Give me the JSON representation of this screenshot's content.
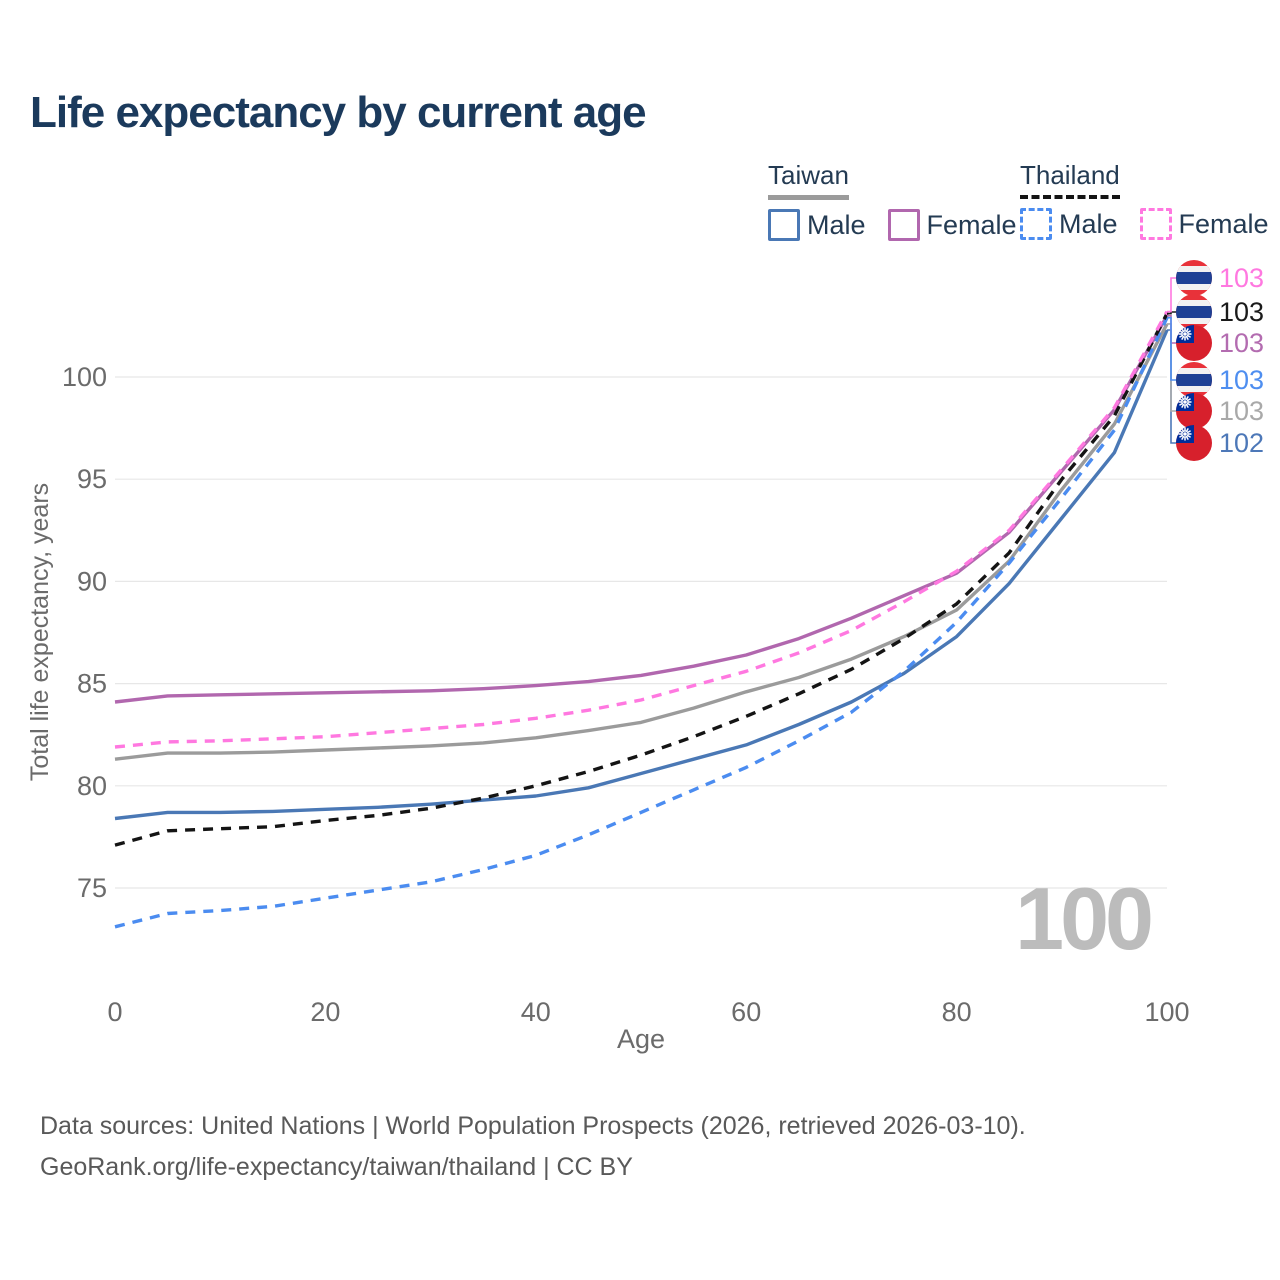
{
  "title": "Life expectancy by current age",
  "watermark": "100",
  "colors": {
    "taiwan_male": "#4a78b5",
    "taiwan_female": "#b167ae",
    "taiwan_all": "#9b9b9b",
    "thailand_male": "#4b8cf0",
    "thailand_female": "#ff78e0",
    "thailand_all": "#141414",
    "grid": "#e7e7e7",
    "tick_text": "#6b6b6b",
    "title_text": "#1b3a5c",
    "legend_text": "#243b53",
    "watermark_text": "#bcbcbc",
    "source_text": "#595959"
  },
  "legend": {
    "groups": [
      {
        "label": "Taiwan",
        "underline_style": "solid",
        "underline_color": "#9b9b9b",
        "items": [
          {
            "label": "Male",
            "color": "#4a78b5",
            "dashed": false
          },
          {
            "label": "Female",
            "color": "#b167ae",
            "dashed": false
          }
        ]
      },
      {
        "label": "Thailand",
        "underline_style": "dashed",
        "underline_color": "#141414",
        "items": [
          {
            "label": "Male",
            "color": "#4b8cf0",
            "dashed": true
          },
          {
            "label": "Female",
            "color": "#ff78e0",
            "dashed": true
          }
        ]
      }
    ]
  },
  "axes": {
    "x_label": "Age",
    "y_label": "Total life expectancy, years",
    "x_ticks": [
      0,
      20,
      40,
      60,
      80,
      100
    ],
    "y_ticks": [
      75,
      80,
      85,
      90,
      95,
      100
    ],
    "x_range": [
      0,
      100
    ],
    "y_range": [
      72.5,
      104
    ]
  },
  "end_labels": [
    {
      "flag": "thailand",
      "value": "103",
      "color": "#ff78e0",
      "series": "Thailand Female"
    },
    {
      "flag": "thailand",
      "value": "103",
      "color": "#1a1a1a",
      "series": "Thailand"
    },
    {
      "flag": "taiwan",
      "value": "103",
      "color": "#b36cb0",
      "series": "Taiwan Female"
    },
    {
      "flag": "thailand",
      "value": "103",
      "color": "#4e8ef0",
      "series": "Thailand Male"
    },
    {
      "flag": "taiwan",
      "value": "103",
      "color": "#a9a9a9",
      "series": "Taiwan"
    },
    {
      "flag": "taiwan",
      "value": "102",
      "color": "#4d78b8",
      "series": "Taiwan Male"
    }
  ],
  "source": {
    "line1": "Data sources: United Nations | World Population Prospects (2026, retrieved 2026-03-10).",
    "line2": "GeoRank.org/life-expectancy/taiwan/thailand | CC BY"
  },
  "chart_data": {
    "type": "line",
    "title": "Life expectancy by current age",
    "xlabel": "Age",
    "ylabel": "Total life expectancy, years",
    "xlim": [
      0,
      100
    ],
    "ylim": [
      72.5,
      104
    ],
    "grid": "horizontal",
    "legend_position": "top-right",
    "x": [
      0,
      5,
      10,
      15,
      20,
      25,
      30,
      35,
      40,
      45,
      50,
      55,
      60,
      65,
      70,
      75,
      80,
      85,
      90,
      95,
      100
    ],
    "series": [
      {
        "name": "Taiwan Male",
        "color_key": "taiwan_male",
        "dashed": false,
        "end_label_index": 5,
        "values": [
          78.4,
          78.7,
          78.7,
          78.75,
          78.85,
          78.95,
          79.1,
          79.3,
          79.5,
          79.9,
          80.6,
          81.3,
          82.0,
          83.0,
          84.1,
          85.5,
          87.3,
          89.9,
          93.1,
          96.3,
          102.3
        ]
      },
      {
        "name": "Taiwan",
        "color_key": "taiwan_all",
        "dashed": false,
        "end_label_index": 4,
        "values": [
          81.3,
          81.6,
          81.6,
          81.65,
          81.75,
          81.85,
          81.95,
          82.1,
          82.35,
          82.7,
          83.1,
          83.8,
          84.6,
          85.3,
          86.2,
          87.3,
          88.6,
          91.0,
          94.5,
          97.7,
          102.6
        ]
      },
      {
        "name": "Taiwan Female",
        "color_key": "taiwan_female",
        "dashed": false,
        "end_label_index": 2,
        "values": [
          84.1,
          84.4,
          84.45,
          84.5,
          84.55,
          84.6,
          84.65,
          84.75,
          84.9,
          85.1,
          85.4,
          85.85,
          86.4,
          87.2,
          88.2,
          89.3,
          90.4,
          92.4,
          95.4,
          98.4,
          103.0
        ]
      },
      {
        "name": "Thailand Male",
        "color_key": "thailand_male",
        "dashed": true,
        "end_label_index": 3,
        "values": [
          73.1,
          73.75,
          73.9,
          74.1,
          74.5,
          74.9,
          75.3,
          75.9,
          76.6,
          77.6,
          78.7,
          79.8,
          80.9,
          82.2,
          83.6,
          85.6,
          88.0,
          90.9,
          94.1,
          97.4,
          102.9
        ]
      },
      {
        "name": "Thailand",
        "color_key": "thailand_all",
        "dashed": true,
        "end_label_index": 1,
        "values": [
          77.1,
          77.8,
          77.9,
          78.0,
          78.3,
          78.55,
          78.9,
          79.4,
          80.0,
          80.7,
          81.5,
          82.4,
          83.4,
          84.5,
          85.7,
          87.2,
          88.9,
          91.4,
          95.0,
          98.1,
          103.1
        ]
      },
      {
        "name": "Thailand Female",
        "color_key": "thailand_female",
        "dashed": true,
        "end_label_index": 0,
        "values": [
          81.9,
          82.15,
          82.2,
          82.3,
          82.4,
          82.6,
          82.8,
          83.0,
          83.3,
          83.7,
          84.2,
          84.9,
          85.6,
          86.5,
          87.6,
          89.0,
          90.5,
          92.5,
          95.5,
          98.5,
          103.2
        ]
      }
    ]
  }
}
